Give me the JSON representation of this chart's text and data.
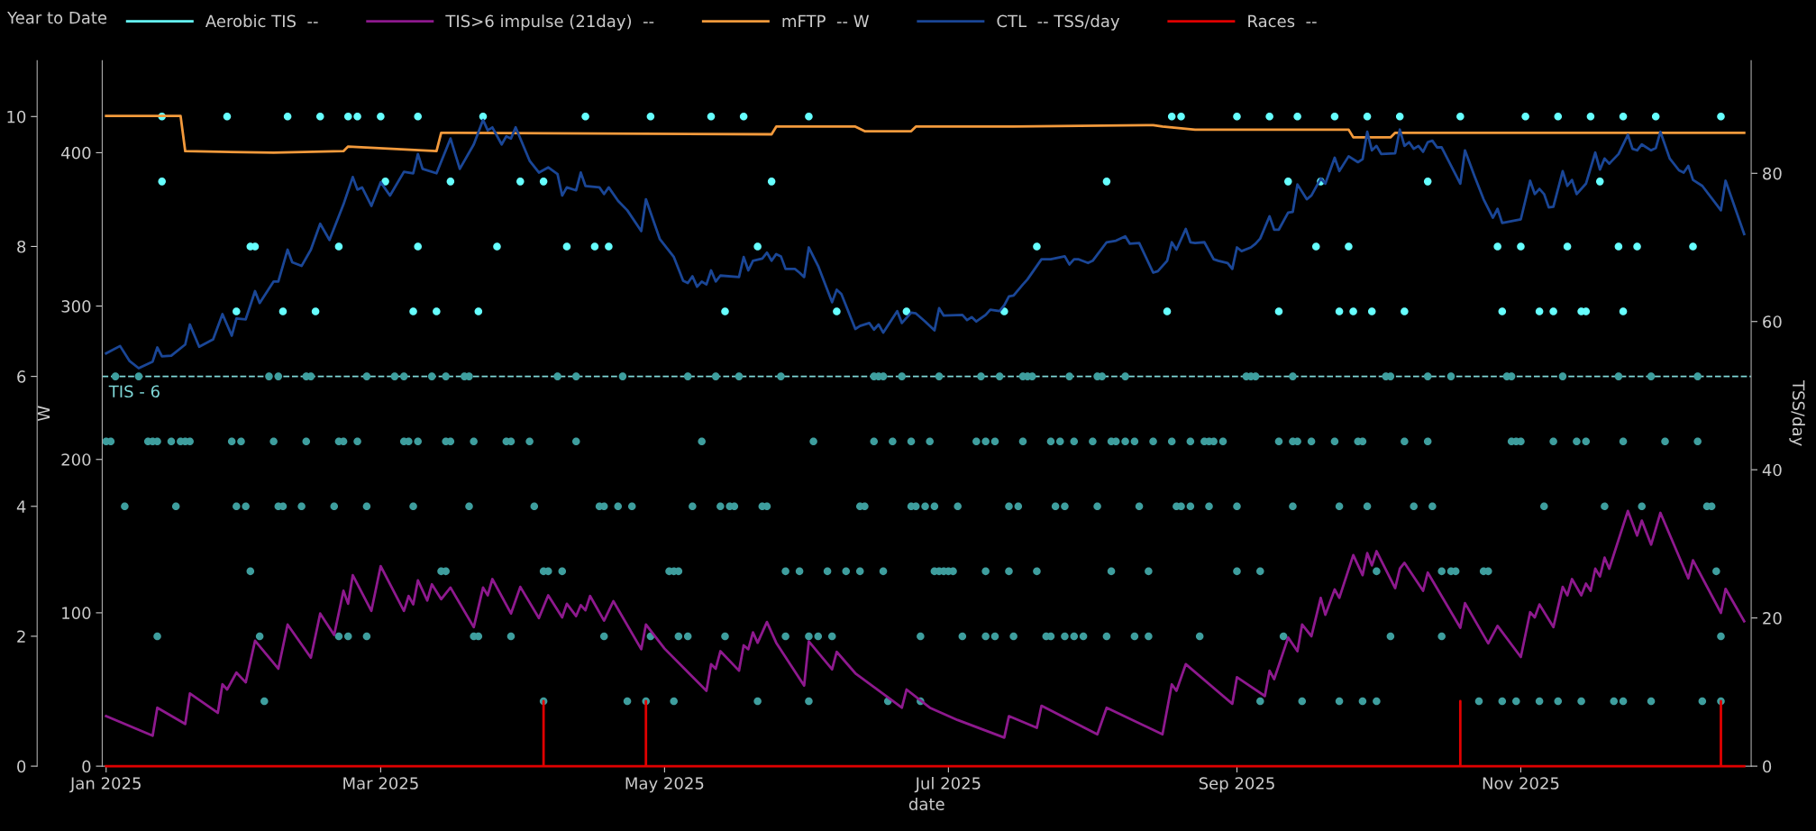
{
  "chart_data": {
    "type": "line",
    "xlabel": "date",
    "y3label": "W",
    "y2label": "TSS/day",
    "legend_title": "Year to Date",
    "legend": "top",
    "xlim": [
      "2024-12-31T04:00",
      "2025-12-20T12:00"
    ],
    "xticks": [
      {
        "value": "2025-01-01",
        "label": "Jan 2025"
      },
      {
        "value": "2025-03-01",
        "label": "Mar 2025"
      },
      {
        "value": "2025-05-01",
        "label": "May 2025"
      },
      {
        "value": "2025-07-01",
        "label": "Jul 2025"
      },
      {
        "value": "2025-09-01",
        "label": "Sep 2025"
      },
      {
        "value": "2025-11-01",
        "label": "Nov 2025"
      }
    ],
    "ylim": [
      0,
      10.86
    ],
    "yticks": [
      0,
      2,
      4,
      6,
      8,
      10
    ],
    "y2lim": [
      0,
      95.2
    ],
    "y2ticks": [
      0,
      20,
      40,
      60,
      80
    ],
    "y3lim": [
      0,
      460
    ],
    "y3ticks": [
      0,
      100,
      200,
      300,
      400
    ],
    "ref_lines": [
      {
        "axis": "y",
        "value": 6,
        "label": "TIS - 6",
        "color": "#7fd8d8",
        "line_style": "dashed"
      }
    ],
    "series": [
      {
        "name": "Aerobic TIS  --",
        "type": "scatter",
        "axis": "y",
        "color": "#66ffff",
        "marker": "circle",
        "x": [
          "2025-01-13",
          "2025-01-27",
          "2025-02-09",
          "2025-02-16",
          "2025-02-22",
          "2025-02-24",
          "2025-03-01",
          "2025-03-09",
          "2025-03-23",
          "2025-04-14",
          "2025-04-28",
          "2025-05-11",
          "2025-05-18",
          "2025-06-01",
          "2025-08-18",
          "2025-08-20",
          "2025-09-01",
          "2025-09-08",
          "2025-09-14",
          "2025-09-22",
          "2025-09-29",
          "2025-10-06",
          "2025-10-19",
          "2025-11-02",
          "2025-11-09",
          "2025-11-16",
          "2025-11-23",
          "2025-11-30",
          "2025-12-14",
          "2025-01-13",
          "2025-03-02",
          "2025-03-16",
          "2025-03-31",
          "2025-04-05",
          "2025-05-24",
          "2025-08-04",
          "2025-09-12",
          "2025-09-19",
          "2025-10-12",
          "2025-11-18",
          "2025-02-01",
          "2025-02-02",
          "2025-02-20",
          "2025-03-09",
          "2025-03-26",
          "2025-04-10",
          "2025-04-16",
          "2025-04-19",
          "2025-05-21",
          "2025-07-20",
          "2025-09-18",
          "2025-09-25",
          "2025-10-27",
          "2025-11-01",
          "2025-11-11",
          "2025-11-22",
          "2025-11-26",
          "2025-12-08",
          "2025-01-29",
          "2025-02-08",
          "2025-02-15",
          "2025-03-08",
          "2025-03-13",
          "2025-03-22",
          "2025-05-14",
          "2025-06-07",
          "2025-06-22",
          "2025-07-13",
          "2025-08-17",
          "2025-09-10",
          "2025-09-23",
          "2025-09-26",
          "2025-09-30",
          "2025-10-07",
          "2025-10-28",
          "2025-11-05",
          "2025-11-08",
          "2025-11-14",
          "2025-11-15",
          "2025-11-23"
        ],
        "values": [
          10,
          10,
          10,
          10,
          10,
          10,
          10,
          10,
          10,
          10,
          10,
          10,
          10,
          10,
          10,
          10,
          10,
          10,
          10,
          10,
          10,
          10,
          10,
          10,
          10,
          10,
          10,
          10,
          10,
          9,
          9,
          9,
          9,
          9,
          9,
          9,
          9,
          9,
          9,
          9,
          8,
          8,
          8,
          8,
          8,
          8,
          8,
          8,
          8,
          8,
          8,
          8,
          8,
          8,
          8,
          8,
          8,
          8,
          7,
          7,
          7,
          7,
          7,
          7,
          7,
          7,
          7,
          7,
          7,
          7,
          7,
          7,
          7,
          7,
          7,
          7,
          7,
          7,
          7,
          7
        ]
      },
      {
        "type": "scatter",
        "axis": "y",
        "color": "#3e9e9e",
        "marker": "circle",
        "x": [
          "2025-01-03",
          "2025-01-08",
          "2025-02-05",
          "2025-02-07",
          "2025-02-13",
          "2025-02-14",
          "2025-02-26",
          "2025-03-04",
          "2025-03-06",
          "2025-03-12",
          "2025-03-15",
          "2025-03-19",
          "2025-03-20",
          "2025-04-08",
          "2025-04-12",
          "2025-04-22",
          "2025-05-06",
          "2025-05-12",
          "2025-05-17",
          "2025-05-26",
          "2025-06-15",
          "2025-06-16",
          "2025-06-17",
          "2025-06-21",
          "2025-06-29",
          "2025-07-08",
          "2025-07-12",
          "2025-07-17",
          "2025-07-18",
          "2025-07-19",
          "2025-07-27",
          "2025-08-02",
          "2025-08-03",
          "2025-08-08",
          "2025-09-03",
          "2025-09-04",
          "2025-09-05",
          "2025-09-13",
          "2025-10-03",
          "2025-10-04",
          "2025-10-12",
          "2025-10-17",
          "2025-10-29",
          "2025-10-30",
          "2025-11-10",
          "2025-11-22",
          "2025-11-29",
          "2025-12-09",
          "2025-01-01",
          "2025-01-02",
          "2025-01-10",
          "2025-01-11",
          "2025-01-12",
          "2025-01-15",
          "2025-01-17",
          "2025-01-18",
          "2025-01-19",
          "2025-01-28",
          "2025-01-30",
          "2025-02-06",
          "2025-02-13",
          "2025-02-20",
          "2025-02-21",
          "2025-02-24",
          "2025-03-06",
          "2025-03-07",
          "2025-03-09",
          "2025-03-15",
          "2025-03-16",
          "2025-03-21",
          "2025-03-28",
          "2025-03-29",
          "2025-04-02",
          "2025-04-12",
          "2025-05-09",
          "2025-06-02",
          "2025-06-15",
          "2025-06-19",
          "2025-06-23",
          "2025-06-27",
          "2025-07-07",
          "2025-07-09",
          "2025-07-11",
          "2025-07-17",
          "2025-07-23",
          "2025-07-25",
          "2025-07-28",
          "2025-08-01",
          "2025-08-05",
          "2025-08-06",
          "2025-08-08",
          "2025-08-10",
          "2025-08-14",
          "2025-08-18",
          "2025-08-22",
          "2025-08-25",
          "2025-08-26",
          "2025-08-27",
          "2025-08-29",
          "2025-09-10",
          "2025-09-13",
          "2025-09-14",
          "2025-09-17",
          "2025-09-22",
          "2025-09-27",
          "2025-09-28",
          "2025-10-07",
          "2025-10-12",
          "2025-10-30",
          "2025-10-31",
          "2025-11-01",
          "2025-11-08",
          "2025-11-13",
          "2025-11-15",
          "2025-11-23",
          "2025-12-02",
          "2025-12-09",
          "2025-01-05",
          "2025-01-16",
          "2025-01-29",
          "2025-01-31",
          "2025-02-07",
          "2025-02-08",
          "2025-02-12",
          "2025-02-19",
          "2025-02-26",
          "2025-03-08",
          "2025-03-20",
          "2025-04-03",
          "2025-04-17",
          "2025-04-18",
          "2025-04-21",
          "2025-04-24",
          "2025-05-07",
          "2025-05-13",
          "2025-05-15",
          "2025-05-16",
          "2025-05-22",
          "2025-05-23",
          "2025-06-12",
          "2025-06-13",
          "2025-06-23",
          "2025-06-24",
          "2025-06-26",
          "2025-06-28",
          "2025-07-03",
          "2025-07-14",
          "2025-07-16",
          "2025-07-24",
          "2025-07-26",
          "2025-08-02",
          "2025-08-11",
          "2025-08-19",
          "2025-08-20",
          "2025-08-22",
          "2025-08-26",
          "2025-09-01",
          "2025-09-13",
          "2025-09-23",
          "2025-09-29",
          "2025-10-09",
          "2025-10-13",
          "2025-11-06",
          "2025-11-19",
          "2025-11-27",
          "2025-12-11",
          "2025-12-12",
          "2025-02-01",
          "2025-03-14",
          "2025-03-15",
          "2025-04-05",
          "2025-04-06",
          "2025-04-09",
          "2025-05-02",
          "2025-05-03",
          "2025-05-04",
          "2025-05-27",
          "2025-05-30",
          "2025-06-05",
          "2025-06-09",
          "2025-06-12",
          "2025-06-17",
          "2025-06-28",
          "2025-06-29",
          "2025-06-30",
          "2025-07-01",
          "2025-07-02",
          "2025-07-09",
          "2025-07-14",
          "2025-07-20",
          "2025-08-05",
          "2025-08-13",
          "2025-09-01",
          "2025-09-06",
          "2025-10-01",
          "2025-10-15",
          "2025-10-17",
          "2025-10-18",
          "2025-10-24",
          "2025-10-25",
          "2025-12-13",
          "2025-01-12",
          "2025-02-03",
          "2025-02-20",
          "2025-02-22",
          "2025-02-26",
          "2025-03-21",
          "2025-03-22",
          "2025-03-29",
          "2025-04-18",
          "2025-04-28",
          "2025-05-04",
          "2025-05-06",
          "2025-05-14",
          "2025-05-27",
          "2025-06-01",
          "2025-06-03",
          "2025-06-06",
          "2025-06-25",
          "2025-07-04",
          "2025-07-09",
          "2025-07-11",
          "2025-07-15",
          "2025-07-22",
          "2025-07-23",
          "2025-07-26",
          "2025-07-28",
          "2025-07-30",
          "2025-08-04",
          "2025-08-10",
          "2025-08-13",
          "2025-08-24",
          "2025-09-11",
          "2025-10-04",
          "2025-10-15",
          "2025-12-14",
          "2025-02-04",
          "2025-04-05",
          "2025-04-23",
          "2025-04-27",
          "2025-05-03",
          "2025-05-21",
          "2025-06-01",
          "2025-06-18",
          "2025-06-25",
          "2025-09-06",
          "2025-09-15",
          "2025-09-23",
          "2025-09-28",
          "2025-10-01",
          "2025-10-23",
          "2025-10-28",
          "2025-10-31",
          "2025-11-05",
          "2025-11-09",
          "2025-11-14",
          "2025-11-21",
          "2025-11-23",
          "2025-11-29",
          "2025-12-10",
          "2025-12-14"
        ],
        "values": [
          6,
          6,
          6,
          6,
          6,
          6,
          6,
          6,
          6,
          6,
          6,
          6,
          6,
          6,
          6,
          6,
          6,
          6,
          6,
          6,
          6,
          6,
          6,
          6,
          6,
          6,
          6,
          6,
          6,
          6,
          6,
          6,
          6,
          6,
          6,
          6,
          6,
          6,
          6,
          6,
          6,
          6,
          6,
          6,
          6,
          6,
          6,
          6,
          5,
          5,
          5,
          5,
          5,
          5,
          5,
          5,
          5,
          5,
          5,
          5,
          5,
          5,
          5,
          5,
          5,
          5,
          5,
          5,
          5,
          5,
          5,
          5,
          5,
          5,
          5,
          5,
          5,
          5,
          5,
          5,
          5,
          5,
          5,
          5,
          5,
          5,
          5,
          5,
          5,
          5,
          5,
          5,
          5,
          5,
          5,
          5,
          5,
          5,
          5,
          5,
          5,
          5,
          5,
          5,
          5,
          5,
          5,
          5,
          5,
          5,
          5,
          5,
          5,
          5,
          5,
          5,
          5,
          4,
          4,
          4,
          4,
          4,
          4,
          4,
          4,
          4,
          4,
          4,
          4,
          4,
          4,
          4,
          4,
          4,
          4,
          4,
          4,
          4,
          4,
          4,
          4,
          4,
          4,
          4,
          4,
          4,
          4,
          4,
          4,
          4,
          4,
          4,
          4,
          4,
          4,
          4,
          4,
          4,
          4,
          4,
          4,
          4,
          4,
          4,
          4,
          4,
          4,
          3,
          3,
          3,
          3,
          3,
          3,
          3,
          3,
          3,
          3,
          3,
          3,
          3,
          3,
          3,
          3,
          3,
          3,
          3,
          3,
          3,
          3,
          3,
          3,
          3,
          3,
          3,
          3,
          3,
          3,
          3,
          3,
          3,
          3,
          2,
          2,
          2,
          2,
          2,
          2,
          2,
          2,
          2,
          2,
          2,
          2,
          2,
          2,
          2,
          2,
          2,
          2,
          2,
          2,
          2,
          2,
          2,
          2,
          2,
          2,
          2,
          2,
          2,
          2,
          2,
          2,
          2,
          2,
          2,
          1,
          1,
          1,
          1,
          1,
          1,
          1,
          1,
          1,
          1,
          1,
          1,
          1,
          1,
          1,
          1,
          1,
          1,
          1,
          1,
          1,
          1,
          1,
          1,
          1
        ]
      },
      {
        "name": "TIS>6 impulse (21day)  --",
        "axis": "y",
        "color": "#8e198e",
        "marker": "none",
        "line_style": "solid",
        "x": [
          "2025-01-01",
          "2025-01-11",
          "2025-01-12",
          "2025-01-18",
          "2025-01-19",
          "2025-01-25",
          "2025-01-26",
          "2025-01-27",
          "2025-01-29",
          "2025-01-31",
          "2025-02-02",
          "2025-02-07",
          "2025-02-09",
          "2025-02-14",
          "2025-02-16",
          "2025-02-19",
          "2025-02-21",
          "2025-02-22",
          "2025-02-23",
          "2025-02-27",
          "2025-03-01",
          "2025-03-06",
          "2025-03-07",
          "2025-03-08",
          "2025-03-09",
          "2025-03-11",
          "2025-03-12",
          "2025-03-14",
          "2025-03-16",
          "2025-03-21",
          "2025-03-23",
          "2025-03-24",
          "2025-03-25",
          "2025-03-29",
          "2025-03-31",
          "2025-04-04",
          "2025-04-06",
          "2025-04-09",
          "2025-04-10",
          "2025-04-12",
          "2025-04-13",
          "2025-04-14",
          "2025-04-15",
          "2025-04-18",
          "2025-04-20",
          "2025-04-26",
          "2025-04-27",
          "2025-05-01",
          "2025-05-10",
          "2025-05-11",
          "2025-05-12",
          "2025-05-13",
          "2025-05-17",
          "2025-05-18",
          "2025-05-19",
          "2025-05-20",
          "2025-05-21",
          "2025-05-23",
          "2025-05-25",
          "2025-05-31",
          "2025-06-01",
          "2025-06-06",
          "2025-06-07",
          "2025-06-11",
          "2025-06-21",
          "2025-06-22",
          "2025-06-27",
          "2025-07-03",
          "2025-07-13",
          "2025-07-14",
          "2025-07-20",
          "2025-07-21",
          "2025-08-02",
          "2025-08-04",
          "2025-08-16",
          "2025-08-18",
          "2025-08-19",
          "2025-08-21",
          "2025-08-31",
          "2025-09-01",
          "2025-09-07",
          "2025-09-08",
          "2025-09-09",
          "2025-09-12",
          "2025-09-14",
          "2025-09-15",
          "2025-09-17",
          "2025-09-19",
          "2025-09-20",
          "2025-09-22",
          "2025-09-23",
          "2025-09-26",
          "2025-09-28",
          "2025-09-29",
          "2025-09-30",
          "2025-10-01",
          "2025-10-05",
          "2025-10-06",
          "2025-10-07",
          "2025-10-11",
          "2025-10-12",
          "2025-10-19",
          "2025-10-20",
          "2025-10-25",
          "2025-10-27",
          "2025-11-01",
          "2025-11-03",
          "2025-11-04",
          "2025-11-05",
          "2025-11-08",
          "2025-11-10",
          "2025-11-11",
          "2025-11-12",
          "2025-11-14",
          "2025-11-15",
          "2025-11-16",
          "2025-11-17",
          "2025-11-18",
          "2025-11-19",
          "2025-11-20",
          "2025-11-24",
          "2025-11-26",
          "2025-11-27",
          "2025-11-29",
          "2025-12-01",
          "2025-12-07",
          "2025-12-08",
          "2025-12-14",
          "2025-12-15",
          "2025-12-19"
        ],
        "values": [
          0.77,
          0.47,
          0.9,
          0.65,
          1.12,
          0.82,
          1.26,
          1.18,
          1.44,
          1.29,
          1.93,
          1.5,
          2.18,
          1.67,
          2.35,
          2.02,
          2.7,
          2.5,
          2.94,
          2.39,
          3.08,
          2.39,
          2.62,
          2.49,
          2.86,
          2.55,
          2.8,
          2.57,
          2.75,
          2.14,
          2.75,
          2.63,
          2.88,
          2.35,
          2.76,
          2.28,
          2.63,
          2.29,
          2.5,
          2.31,
          2.48,
          2.4,
          2.62,
          2.24,
          2.54,
          1.8,
          2.18,
          1.81,
          1.16,
          1.57,
          1.5,
          1.77,
          1.47,
          1.86,
          1.8,
          2.06,
          1.9,
          2.22,
          1.9,
          1.24,
          1.92,
          1.49,
          1.76,
          1.43,
          0.9,
          1.18,
          0.9,
          0.71,
          0.44,
          0.77,
          0.59,
          0.93,
          0.49,
          0.9,
          0.49,
          1.26,
          1.16,
          1.57,
          0.96,
          1.37,
          1.08,
          1.47,
          1.34,
          1.98,
          1.77,
          2.18,
          2.0,
          2.59,
          2.33,
          2.72,
          2.59,
          3.25,
          2.94,
          3.28,
          3.09,
          3.31,
          2.74,
          3.04,
          3.13,
          2.7,
          2.98,
          2.13,
          2.51,
          1.89,
          2.16,
          1.68,
          2.37,
          2.29,
          2.49,
          2.14,
          2.76,
          2.63,
          2.88,
          2.63,
          2.81,
          2.7,
          3.04,
          2.92,
          3.21,
          3.04,
          3.93,
          3.55,
          3.78,
          3.41,
          3.9,
          2.89,
          3.17,
          2.36,
          2.73,
          2.23
        ]
      },
      {
        "name": "mFTP  -- W",
        "axis": "y3",
        "color": "#f39a3c",
        "marker": "none",
        "line_style": "solid",
        "x": [
          "2025-01-01",
          "2025-01-17",
          "2025-01-18",
          "2025-02-06",
          "2025-02-21",
          "2025-02-22",
          "2025-03-13",
          "2025-03-14",
          "2025-05-24",
          "2025-05-25",
          "2025-06-11",
          "2025-06-13",
          "2025-06-23",
          "2025-06-24",
          "2025-07-15",
          "2025-08-14",
          "2025-08-16",
          "2025-08-23",
          "2025-09-25",
          "2025-09-26",
          "2025-10-04",
          "2025-10-05",
          "2025-12-19"
        ],
        "values": [
          424,
          424,
          401,
          400,
          401,
          404,
          401,
          413,
          412,
          417,
          417,
          414,
          414,
          417,
          417,
          418,
          417,
          415,
          415,
          410,
          410,
          413,
          413
        ]
      },
      {
        "name": "CTL  -- TSS/day",
        "axis": "y2",
        "color": "#1a4696",
        "marker": "none",
        "line_style": "solid",
        "x": [
          "2025-01-01",
          "2025-01-04",
          "2025-01-06",
          "2025-01-08",
          "2025-01-11",
          "2025-01-12",
          "2025-01-13",
          "2025-01-15",
          "2025-01-18",
          "2025-01-19",
          "2025-01-21",
          "2025-01-24",
          "2025-01-26",
          "2025-01-28",
          "2025-01-29",
          "2025-01-31",
          "2025-02-02",
          "2025-02-03",
          "2025-02-06",
          "2025-02-07",
          "2025-02-09",
          "2025-02-10",
          "2025-02-12",
          "2025-02-14",
          "2025-02-16",
          "2025-02-18",
          "2025-02-21",
          "2025-02-23",
          "2025-02-24",
          "2025-02-25",
          "2025-02-27",
          "2025-03-01",
          "2025-03-03",
          "2025-03-06",
          "2025-03-08",
          "2025-03-09",
          "2025-03-10",
          "2025-03-13",
          "2025-03-16",
          "2025-03-18",
          "2025-03-21",
          "2025-03-23",
          "2025-03-24",
          "2025-03-25",
          "2025-03-27",
          "2025-03-28",
          "2025-03-29",
          "2025-03-30",
          "2025-04-02",
          "2025-04-04",
          "2025-04-06",
          "2025-04-08",
          "2025-04-09",
          "2025-04-10",
          "2025-04-12",
          "2025-04-13",
          "2025-04-14",
          "2025-04-17",
          "2025-04-18",
          "2025-04-19",
          "2025-04-21",
          "2025-04-23",
          "2025-04-26",
          "2025-04-27",
          "2025-04-30",
          "2025-05-03",
          "2025-05-05",
          "2025-05-06",
          "2025-05-07",
          "2025-05-08",
          "2025-05-09",
          "2025-05-10",
          "2025-05-11",
          "2025-05-12",
          "2025-05-13",
          "2025-05-17",
          "2025-05-18",
          "2025-05-19",
          "2025-05-20",
          "2025-05-22",
          "2025-05-23",
          "2025-05-24",
          "2025-05-25",
          "2025-05-26",
          "2025-05-27",
          "2025-05-29",
          "2025-05-30",
          "2025-05-31",
          "2025-06-01",
          "2025-06-03",
          "2025-06-06",
          "2025-06-07",
          "2025-06-08",
          "2025-06-11",
          "2025-06-12",
          "2025-06-14",
          "2025-06-15",
          "2025-06-16",
          "2025-06-17",
          "2025-06-20",
          "2025-06-21",
          "2025-06-23",
          "2025-06-24",
          "2025-06-26",
          "2025-06-28",
          "2025-06-29",
          "2025-06-30",
          "2025-07-04",
          "2025-07-05",
          "2025-07-06",
          "2025-07-07",
          "2025-07-09",
          "2025-07-10",
          "2025-07-12",
          "2025-07-13",
          "2025-07-14",
          "2025-07-15",
          "2025-07-17",
          "2025-07-18",
          "2025-07-21",
          "2025-07-23",
          "2025-07-26",
          "2025-07-27",
          "2025-07-28",
          "2025-07-29",
          "2025-07-31",
          "2025-08-01",
          "2025-08-04",
          "2025-08-06",
          "2025-08-08",
          "2025-08-09",
          "2025-08-11",
          "2025-08-14",
          "2025-08-15",
          "2025-08-17",
          "2025-08-18",
          "2025-08-19",
          "2025-08-21",
          "2025-08-22",
          "2025-08-23",
          "2025-08-25",
          "2025-08-27",
          "2025-08-28",
          "2025-08-30",
          "2025-08-31",
          "2025-09-01",
          "2025-09-02",
          "2025-09-04",
          "2025-09-05",
          "2025-09-06",
          "2025-09-08",
          "2025-09-09",
          "2025-09-10",
          "2025-09-12",
          "2025-09-13",
          "2025-09-14",
          "2025-09-16",
          "2025-09-17",
          "2025-09-19",
          "2025-09-20",
          "2025-09-22",
          "2025-09-23",
          "2025-09-25",
          "2025-09-27",
          "2025-09-28",
          "2025-09-29",
          "2025-09-30",
          "2025-10-01",
          "2025-10-02",
          "2025-10-05",
          "2025-10-06",
          "2025-10-07",
          "2025-10-08",
          "2025-10-09",
          "2025-10-10",
          "2025-10-11",
          "2025-10-12",
          "2025-10-13",
          "2025-10-14",
          "2025-10-15",
          "2025-10-19",
          "2025-10-20",
          "2025-10-22",
          "2025-10-24",
          "2025-10-26",
          "2025-10-27",
          "2025-10-28",
          "2025-11-01",
          "2025-11-03",
          "2025-11-04",
          "2025-11-05",
          "2025-11-06",
          "2025-11-07",
          "2025-11-08",
          "2025-11-10",
          "2025-11-11",
          "2025-11-12",
          "2025-11-13",
          "2025-11-15",
          "2025-11-17",
          "2025-11-18",
          "2025-11-19",
          "2025-11-20",
          "2025-11-22",
          "2025-11-24",
          "2025-11-25",
          "2025-11-26",
          "2025-11-27",
          "2025-11-29",
          "2025-11-30",
          "2025-12-01",
          "2025-12-03",
          "2025-12-05",
          "2025-12-06",
          "2025-12-07",
          "2025-12-08",
          "2025-12-10",
          "2025-12-14",
          "2025-12-15",
          "2025-12-19"
        ],
        "values": [
          55.7,
          56.7,
          54.7,
          53.7,
          54.6,
          56.5,
          55.3,
          55.4,
          56.9,
          59.6,
          56.6,
          57.6,
          61.0,
          58.1,
          60.4,
          60.3,
          64.1,
          62.5,
          65.4,
          65.4,
          69.7,
          68.0,
          67.5,
          69.7,
          73.2,
          71.0,
          75.8,
          79.5,
          77.8,
          78.1,
          75.6,
          78.8,
          77.0,
          80.2,
          80.0,
          82.6,
          80.6,
          80.0,
          84.7,
          80.6,
          83.9,
          87.2,
          85.8,
          86.2,
          83.9,
          85.0,
          84.7,
          86.2,
          81.7,
          80.1,
          80.8,
          79.9,
          77.0,
          78.1,
          77.7,
          80.1,
          78.3,
          78.1,
          77.2,
          78.1,
          76.3,
          75.0,
          72.2,
          76.5,
          71.1,
          68.7,
          65.5,
          65.2,
          66.1,
          64.7,
          65.4,
          65.0,
          66.9,
          65.4,
          66.2,
          66.0,
          68.7,
          66.9,
          68.2,
          68.5,
          69.3,
          68.2,
          69.1,
          68.8,
          67.1,
          67.1,
          66.6,
          66.0,
          70.0,
          67.5,
          62.6,
          64.3,
          63.7,
          59.0,
          59.4,
          59.8,
          58.9,
          59.6,
          58.5,
          61.4,
          59.8,
          61.2,
          61.1,
          60.0,
          58.8,
          61.8,
          60.8,
          60.9,
          60.2,
          60.6,
          60.0,
          60.9,
          61.6,
          61.4,
          62.2,
          63.4,
          63.5,
          65.0,
          65.7,
          68.4,
          68.4,
          68.8,
          67.7,
          68.4,
          68.4,
          67.9,
          68.2,
          70.7,
          70.9,
          71.5,
          70.5,
          70.6,
          66.6,
          66.8,
          68.2,
          70.7,
          69.7,
          72.5,
          70.7,
          70.6,
          70.7,
          68.4,
          68.2,
          67.9,
          67.1,
          70.0,
          69.5,
          70.0,
          70.5,
          71.2,
          74.2,
          72.4,
          72.4,
          74.7,
          74.8,
          78.5,
          76.5,
          77.0,
          79.3,
          78.6,
          82.1,
          80.3,
          82.3,
          81.5,
          81.9,
          85.6,
          83.1,
          83.7,
          82.6,
          82.7,
          85.9,
          83.7,
          84.2,
          83.3,
          83.7,
          82.9,
          84.2,
          84.4,
          83.5,
          83.5,
          78.6,
          83.1,
          79.7,
          76.5,
          74.0,
          75.2,
          73.3,
          73.8,
          79.0,
          77.2,
          77.9,
          77.2,
          75.4,
          75.5,
          80.3,
          78.3,
          79.1,
          77.2,
          78.6,
          82.8,
          80.5,
          82.0,
          81.3,
          82.6,
          85.2,
          83.3,
          83.1,
          83.9,
          83.1,
          83.4,
          85.6,
          82.0,
          80.4,
          80.1,
          81.0,
          79.1,
          78.3,
          75.0,
          79.0,
          71.8
        ]
      },
      {
        "name": "Races  --",
        "axis": "y",
        "color": "#e00000",
        "marker": "none",
        "line_style": "solid",
        "x": [
          "2025-01-01",
          "2025-04-05",
          "2025-04-05",
          "2025-04-05",
          "2025-04-27",
          "2025-04-27",
          "2025-04-27",
          "2025-10-19",
          "2025-10-19",
          "2025-10-19",
          "2025-12-14",
          "2025-12-14",
          "2025-12-14",
          "2025-12-19"
        ],
        "values": [
          0,
          0,
          1,
          0,
          0,
          1,
          0,
          0,
          1,
          0,
          0,
          1,
          0,
          0
        ]
      }
    ]
  }
}
